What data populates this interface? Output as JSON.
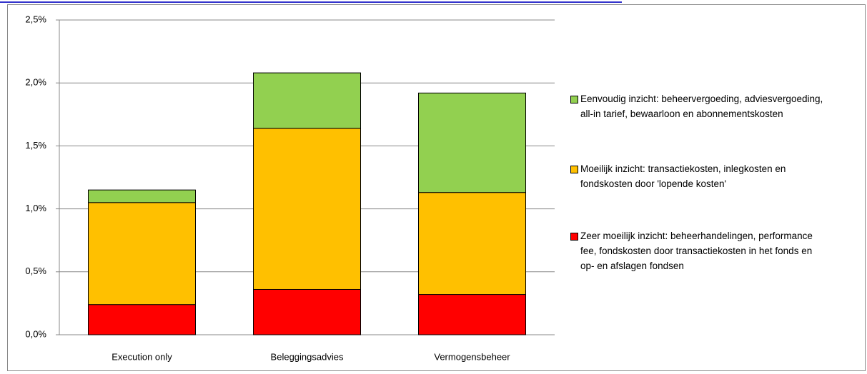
{
  "chart_data": {
    "type": "stacked_bar",
    "categories": [
      "Execution only",
      "Beleggingsadvies",
      "Vermogensbeheer"
    ],
    "series": [
      {
        "name": "Zeer moeilijk inzicht: beheerhandelingen, performance fee, fondskosten door transactiekosten in het fonds en op- en afslagen fondsen",
        "color": "#ff0000",
        "values": [
          0.24,
          0.36,
          0.32
        ]
      },
      {
        "name": "Moeilijk inzicht: transactiekosten, inlegkosten en fondskosten door 'lopende kosten'",
        "color": "#ffc000",
        "values": [
          0.81,
          1.28,
          0.81
        ]
      },
      {
        "name": "Eenvoudig inzicht: beheervergoeding, adviesvergoeding, all-in tarief, bewaarloon en abonnementskosten",
        "color": "#92d050",
        "values": [
          0.1,
          0.44,
          0.79
        ]
      }
    ],
    "ylim": [
      0,
      2.5
    ],
    "yticks": [
      {
        "value": 0,
        "label": "0,0%"
      },
      {
        "value": 0.5,
        "label": "0,5%"
      },
      {
        "value": 1,
        "label": "1,0%"
      },
      {
        "value": 1.5,
        "label": "1,5%"
      },
      {
        "value": 2,
        "label": "2,0%"
      },
      {
        "value": 2.5,
        "label": "2,5%"
      }
    ],
    "grid": true
  }
}
